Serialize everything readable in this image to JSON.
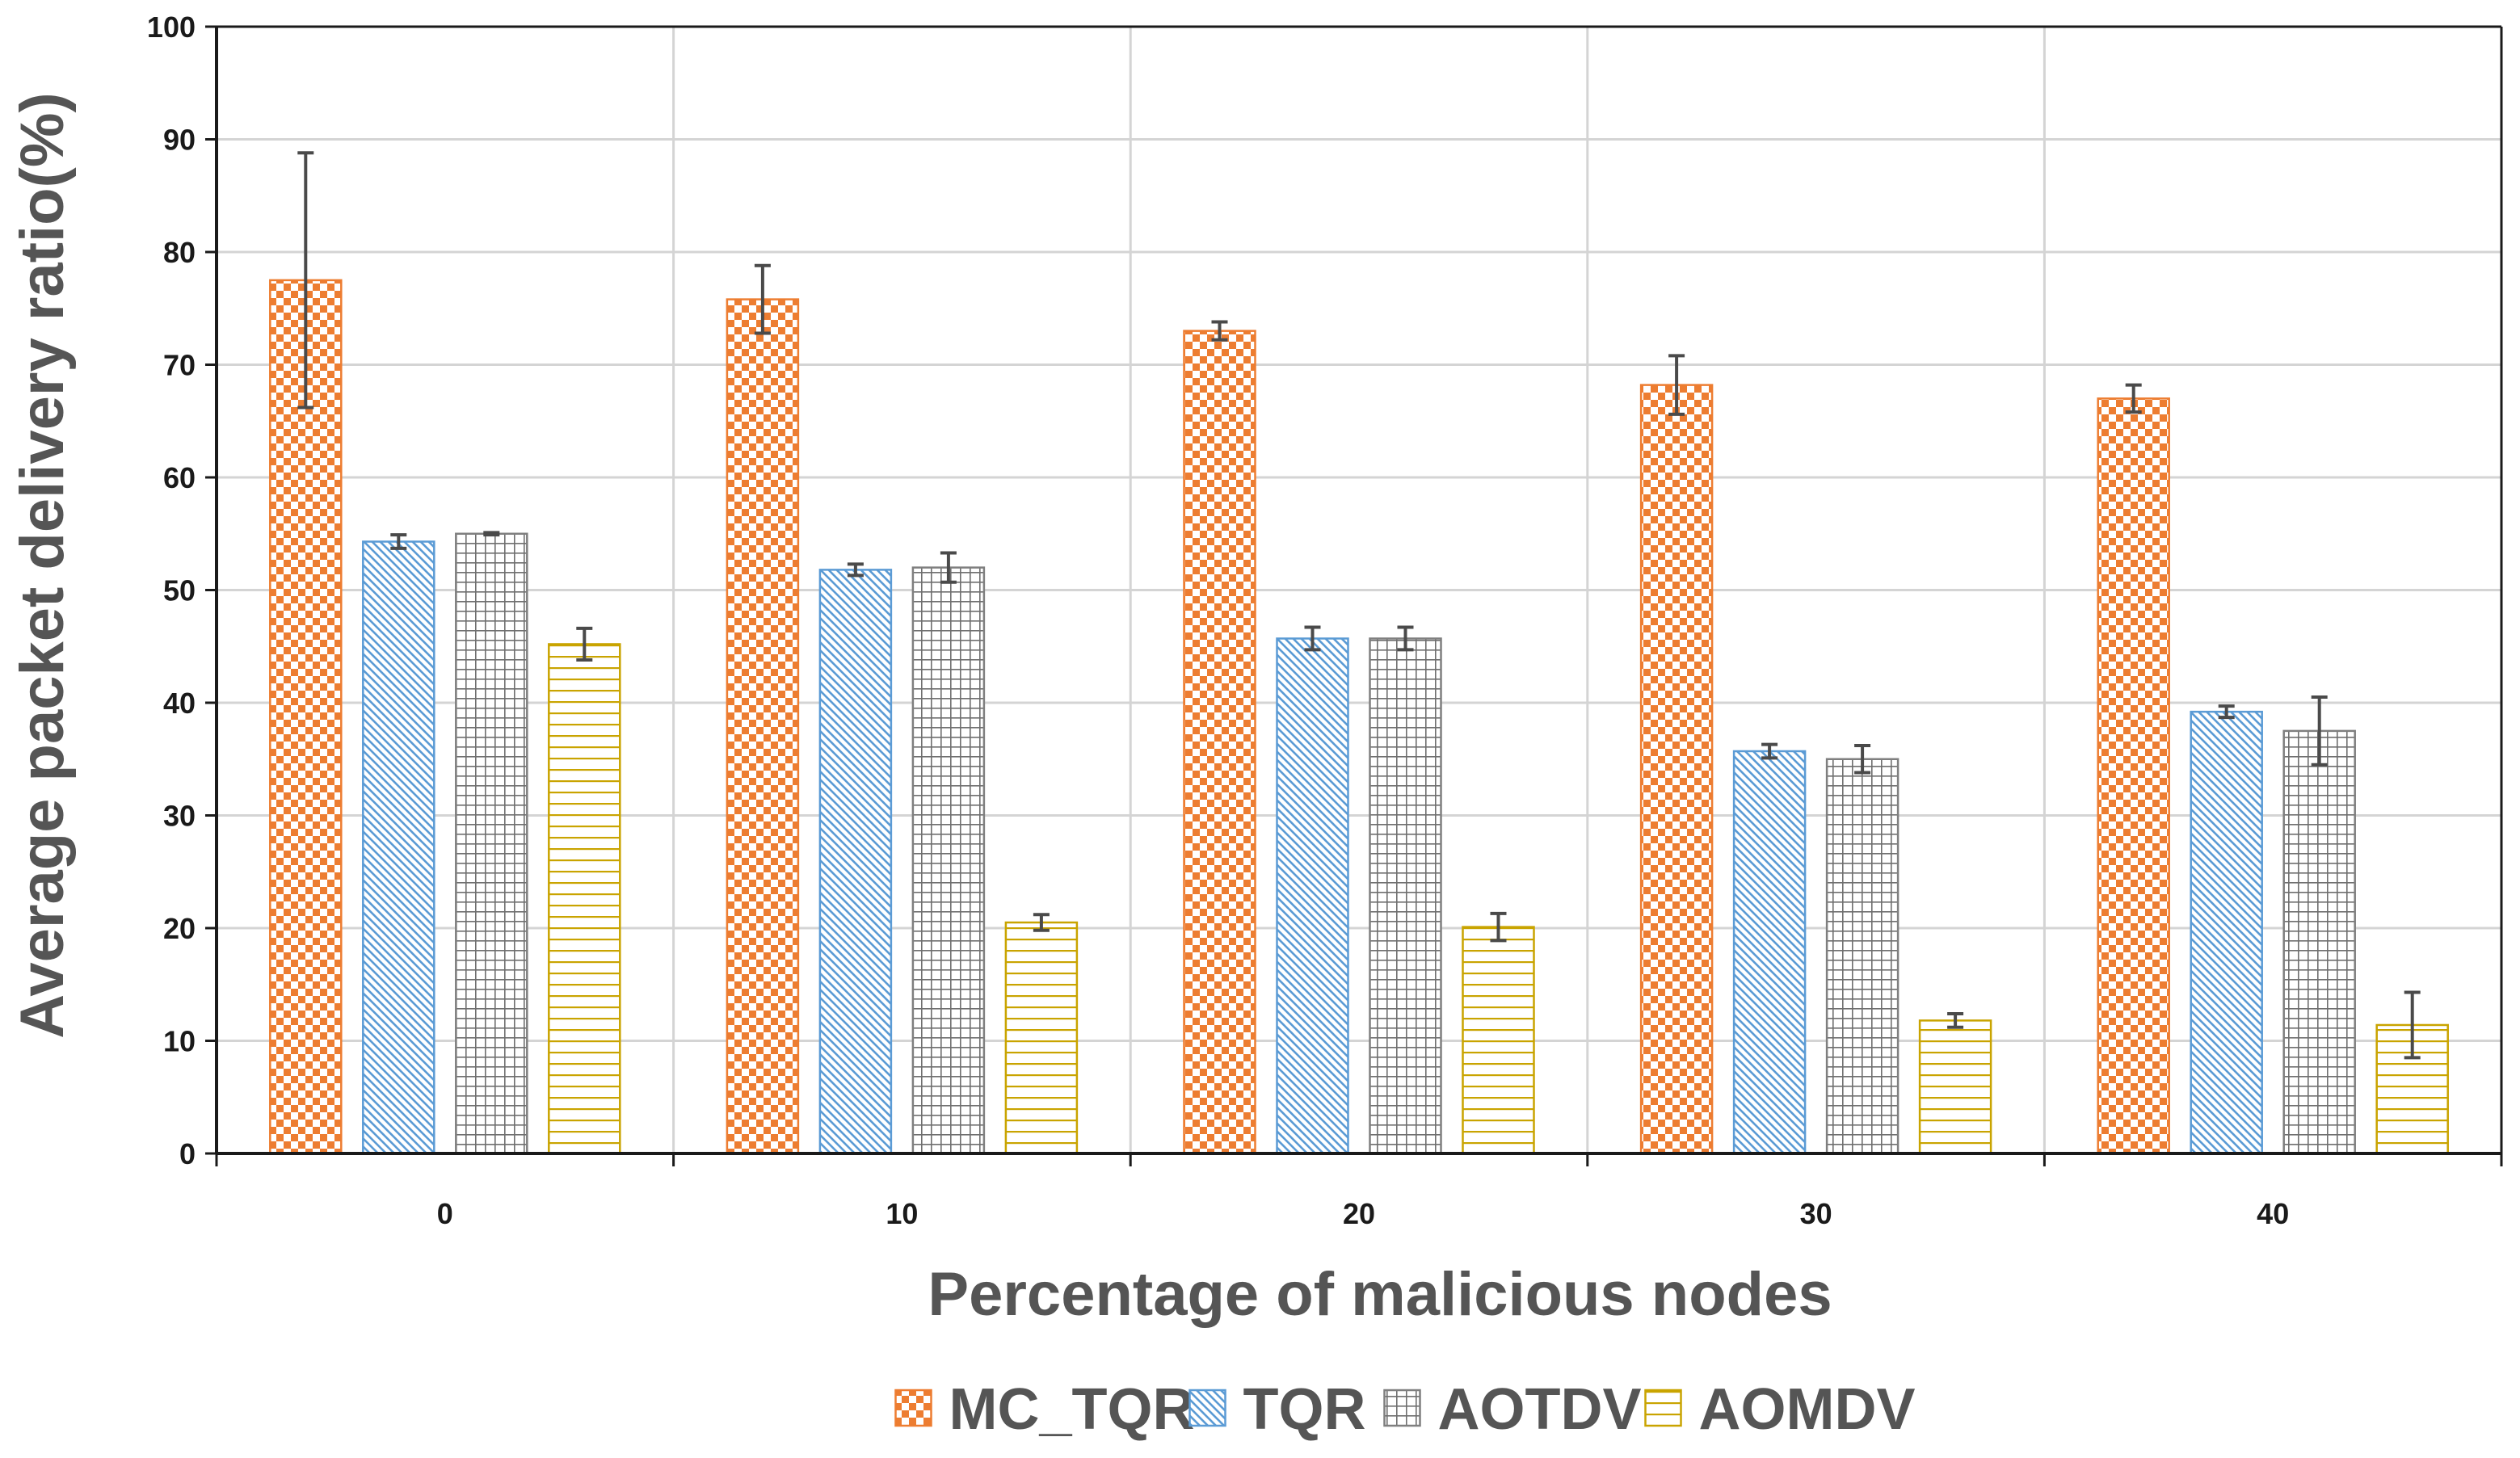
{
  "chart_data": {
    "type": "bar",
    "title": "",
    "xlabel": "Percentage of malicious nodes",
    "ylabel": "Average packet delivery ratio(%)",
    "categories": [
      "0",
      "10",
      "20",
      "30",
      "40"
    ],
    "ylim": [
      0,
      100
    ],
    "yticks": [
      "0",
      "10",
      "20",
      "30",
      "40",
      "50",
      "60",
      "70",
      "80",
      "90",
      "100"
    ],
    "grid": true,
    "legend_position": "bottom",
    "series": [
      {
        "name": "MC_TQR",
        "values": [
          77.5,
          75.8,
          73.0,
          68.2,
          67.0
        ],
        "error": [
          11.3,
          3.0,
          0.8,
          2.6,
          1.2
        ],
        "color": "#ED7D31",
        "pattern": "checkerboard"
      },
      {
        "name": "TQR",
        "values": [
          54.3,
          51.8,
          45.7,
          35.7,
          39.2
        ],
        "error": [
          0.6,
          0.5,
          1.0,
          0.6,
          0.5
        ],
        "color": "#5B9BD5",
        "pattern": "diagonal"
      },
      {
        "name": "AOTDV",
        "values": [
          55.0,
          52.0,
          45.7,
          35.0,
          37.5
        ],
        "error": [
          0.1,
          1.3,
          1.0,
          1.2,
          3.0
        ],
        "color": "#7F7F7F",
        "pattern": "grid"
      },
      {
        "name": "AOMDV",
        "values": [
          45.2,
          20.5,
          20.1,
          11.8,
          11.4
        ],
        "error": [
          1.4,
          0.7,
          1.2,
          0.6,
          2.9
        ],
        "color": "#C9A400",
        "pattern": "horizontal"
      }
    ]
  }
}
